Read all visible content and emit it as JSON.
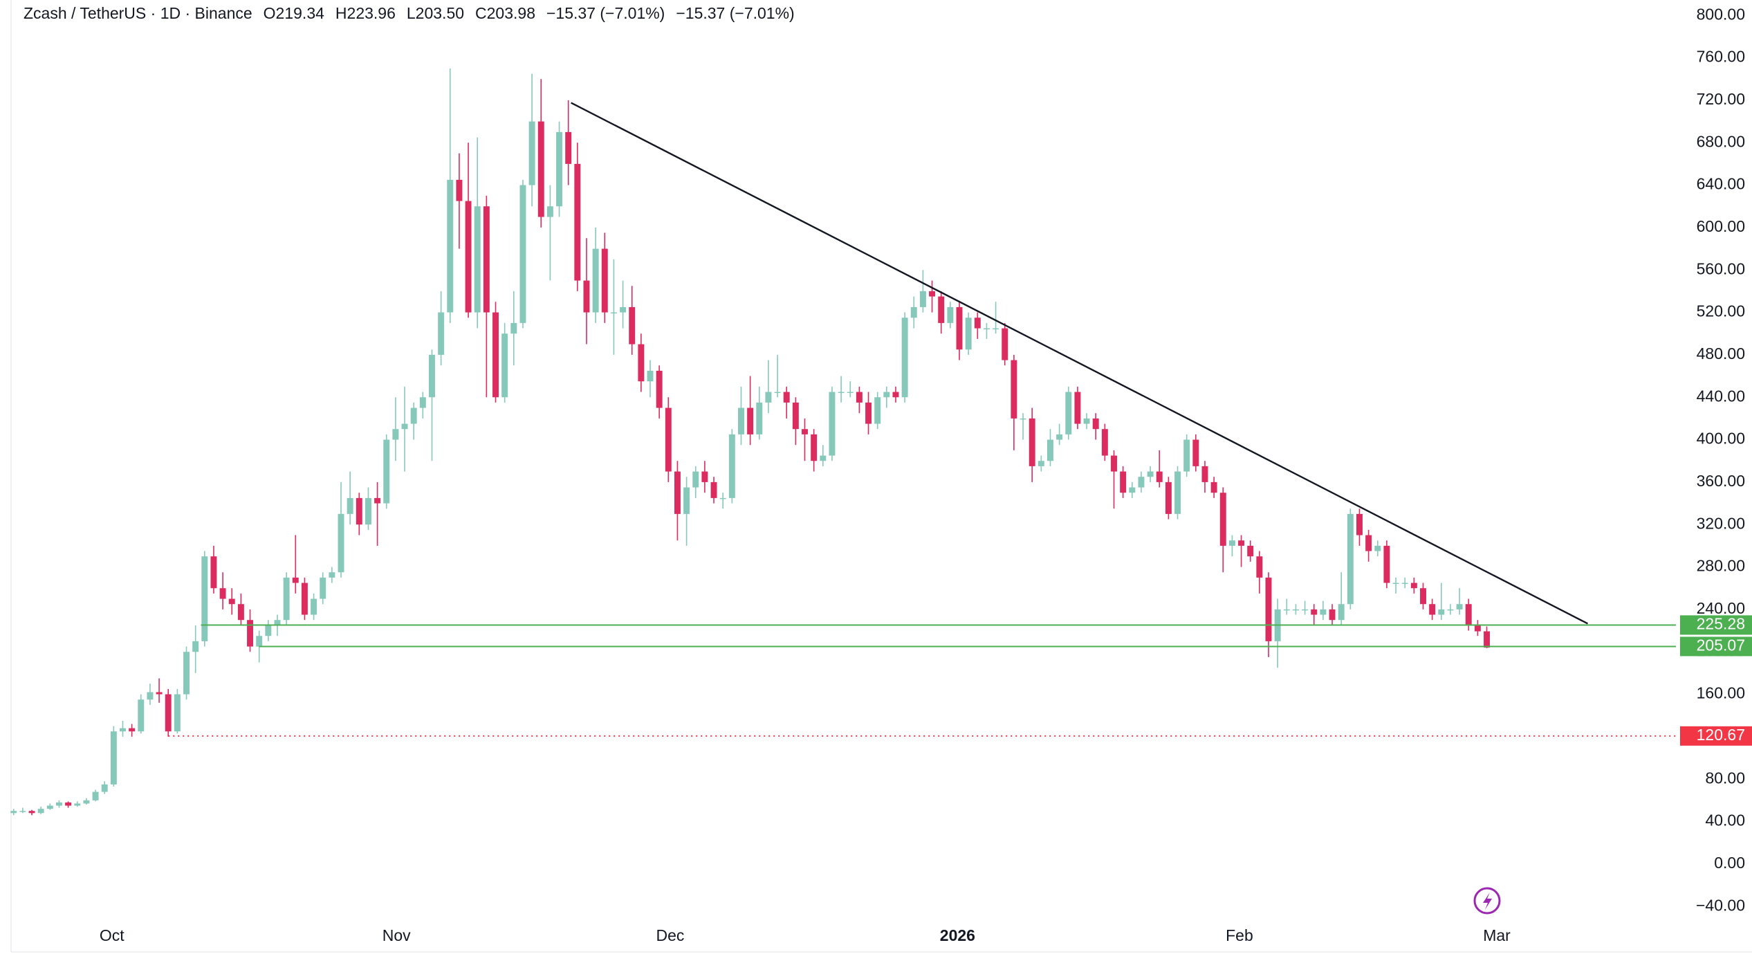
{
  "chart_data": {
    "type": "candlestick",
    "title": "Zcash / TetherUS · 1D · Binance",
    "header_values": [
      "O219.34",
      "H223.96",
      "L203.50",
      "C203.98",
      "−15.37 (−7.01%)",
      "−15.37 (−7.01%)"
    ],
    "up_color": "#86c8ba",
    "down_color": "#dc2b5e",
    "candles": [
      [
        48,
        52,
        46,
        50
      ],
      [
        50,
        53,
        48,
        50
      ],
      [
        50,
        51,
        46,
        48
      ],
      [
        48,
        54,
        47,
        52
      ],
      [
        52,
        57,
        51,
        55
      ],
      [
        55,
        60,
        53,
        58
      ],
      [
        58,
        59,
        53,
        55
      ],
      [
        55,
        59,
        54,
        57
      ],
      [
        57,
        62,
        56,
        60
      ],
      [
        60,
        70,
        59,
        68
      ],
      [
        68,
        78,
        66,
        75
      ],
      [
        75,
        130,
        73,
        125
      ],
      [
        125,
        135,
        120,
        128
      ],
      [
        128,
        132,
        120,
        125
      ],
      [
        125,
        160,
        123,
        155
      ],
      [
        155,
        170,
        150,
        162
      ],
      [
        162,
        175,
        152,
        160
      ],
      [
        160,
        165,
        120,
        125
      ],
      [
        125,
        165,
        123,
        160
      ],
      [
        160,
        205,
        155,
        200
      ],
      [
        200,
        225,
        180,
        210
      ],
      [
        210,
        295,
        205,
        290
      ],
      [
        290,
        300,
        255,
        260
      ],
      [
        260,
        275,
        240,
        250
      ],
      [
        250,
        260,
        235,
        245
      ],
      [
        245,
        255,
        225,
        230
      ],
      [
        230,
        240,
        200,
        205
      ],
      [
        205,
        220,
        190,
        215
      ],
      [
        215,
        230,
        210,
        225
      ],
      [
        225,
        235,
        215,
        230
      ],
      [
        230,
        275,
        225,
        270
      ],
      [
        270,
        310,
        255,
        265
      ],
      [
        265,
        270,
        230,
        235
      ],
      [
        235,
        255,
        230,
        250
      ],
      [
        250,
        275,
        245,
        270
      ],
      [
        270,
        280,
        265,
        275
      ],
      [
        275,
        360,
        270,
        330
      ],
      [
        330,
        370,
        320,
        345
      ],
      [
        345,
        350,
        310,
        320
      ],
      [
        320,
        355,
        315,
        345
      ],
      [
        345,
        360,
        300,
        340
      ],
      [
        340,
        405,
        335,
        400
      ],
      [
        400,
        440,
        380,
        410
      ],
      [
        410,
        450,
        370,
        415
      ],
      [
        415,
        435,
        400,
        430
      ],
      [
        430,
        445,
        420,
        440
      ],
      [
        440,
        485,
        380,
        480
      ],
      [
        480,
        540,
        470,
        520
      ],
      [
        520,
        750,
        510,
        645
      ],
      [
        645,
        670,
        580,
        625
      ],
      [
        625,
        680,
        515,
        520
      ],
      [
        520,
        685,
        505,
        620
      ],
      [
        620,
        630,
        440,
        520
      ],
      [
        520,
        530,
        435,
        440
      ],
      [
        440,
        510,
        435,
        500
      ],
      [
        500,
        540,
        470,
        510
      ],
      [
        510,
        645,
        505,
        640
      ],
      [
        640,
        745,
        620,
        700
      ],
      [
        700,
        740,
        600,
        610
      ],
      [
        610,
        640,
        550,
        620
      ],
      [
        620,
        700,
        610,
        690
      ],
      [
        690,
        720,
        640,
        660
      ],
      [
        660,
        680,
        540,
        550
      ],
      [
        550,
        590,
        490,
        520
      ],
      [
        520,
        600,
        510,
        580
      ],
      [
        580,
        595,
        510,
        520
      ],
      [
        520,
        570,
        480,
        520
      ],
      [
        520,
        550,
        505,
        525
      ],
      [
        525,
        545,
        480,
        490
      ],
      [
        490,
        500,
        445,
        455
      ],
      [
        455,
        475,
        440,
        465
      ],
      [
        465,
        470,
        420,
        430
      ],
      [
        430,
        440,
        360,
        370
      ],
      [
        370,
        380,
        305,
        330
      ],
      [
        330,
        365,
        300,
        355
      ],
      [
        355,
        375,
        345,
        370
      ],
      [
        370,
        380,
        350,
        360
      ],
      [
        360,
        365,
        340,
        345
      ],
      [
        345,
        350,
        335,
        345
      ],
      [
        345,
        410,
        340,
        405
      ],
      [
        405,
        450,
        395,
        430
      ],
      [
        430,
        460,
        395,
        405
      ],
      [
        405,
        450,
        400,
        435
      ],
      [
        435,
        475,
        425,
        445
      ],
      [
        445,
        480,
        440,
        445
      ],
      [
        445,
        450,
        420,
        435
      ],
      [
        435,
        440,
        395,
        410
      ],
      [
        410,
        420,
        380,
        405
      ],
      [
        405,
        410,
        370,
        380
      ],
      [
        380,
        395,
        375,
        385
      ],
      [
        385,
        450,
        380,
        445
      ],
      [
        445,
        460,
        435,
        445
      ],
      [
        445,
        455,
        440,
        445
      ],
      [
        445,
        450,
        425,
        435
      ],
      [
        435,
        445,
        405,
        415
      ],
      [
        415,
        445,
        410,
        440
      ],
      [
        440,
        450,
        430,
        445
      ],
      [
        445,
        450,
        435,
        440
      ],
      [
        440,
        520,
        435,
        515
      ],
      [
        515,
        535,
        505,
        525
      ],
      [
        525,
        560,
        520,
        540
      ],
      [
        540,
        550,
        520,
        535
      ],
      [
        535,
        540,
        500,
        510
      ],
      [
        510,
        530,
        505,
        525
      ],
      [
        525,
        530,
        475,
        485
      ],
      [
        485,
        520,
        480,
        515
      ],
      [
        515,
        520,
        495,
        505
      ],
      [
        505,
        510,
        495,
        505
      ],
      [
        505,
        530,
        500,
        505
      ],
      [
        505,
        510,
        470,
        475
      ],
      [
        475,
        480,
        390,
        420
      ],
      [
        420,
        425,
        400,
        420
      ],
      [
        420,
        430,
        360,
        375
      ],
      [
        375,
        385,
        370,
        380
      ],
      [
        380,
        410,
        375,
        400
      ],
      [
        400,
        415,
        395,
        405
      ],
      [
        405,
        450,
        400,
        445
      ],
      [
        445,
        450,
        410,
        415
      ],
      [
        415,
        425,
        410,
        420
      ],
      [
        420,
        425,
        400,
        410
      ],
      [
        410,
        415,
        380,
        385
      ],
      [
        385,
        390,
        335,
        370
      ],
      [
        370,
        375,
        345,
        350
      ],
      [
        350,
        360,
        345,
        355
      ],
      [
        355,
        370,
        350,
        365
      ],
      [
        365,
        375,
        360,
        370
      ],
      [
        370,
        390,
        355,
        360
      ],
      [
        360,
        365,
        325,
        330
      ],
      [
        330,
        375,
        325,
        370
      ],
      [
        370,
        405,
        365,
        400
      ],
      [
        400,
        405,
        370,
        375
      ],
      [
        375,
        380,
        350,
        360
      ],
      [
        360,
        365,
        345,
        350
      ],
      [
        350,
        355,
        275,
        300
      ],
      [
        300,
        310,
        290,
        305
      ],
      [
        305,
        310,
        280,
        300
      ],
      [
        300,
        305,
        285,
        290
      ],
      [
        290,
        295,
        255,
        270
      ],
      [
        270,
        275,
        195,
        210
      ],
      [
        210,
        250,
        185,
        240
      ],
      [
        240,
        250,
        235,
        240
      ],
      [
        240,
        245,
        235,
        240
      ],
      [
        240,
        248,
        235,
        240
      ],
      [
        240,
        245,
        225,
        235
      ],
      [
        235,
        248,
        230,
        240
      ],
      [
        240,
        245,
        225,
        230
      ],
      [
        230,
        275,
        225,
        245
      ],
      [
        245,
        335,
        240,
        330
      ],
      [
        330,
        335,
        300,
        310
      ],
      [
        310,
        315,
        285,
        295
      ],
      [
        295,
        305,
        290,
        300
      ],
      [
        300,
        305,
        260,
        265
      ],
      [
        265,
        270,
        255,
        265
      ],
      [
        265,
        270,
        260,
        265
      ],
      [
        265,
        270,
        255,
        260
      ],
      [
        260,
        265,
        240,
        245
      ],
      [
        245,
        250,
        230,
        235
      ],
      [
        235,
        265,
        230,
        240
      ],
      [
        240,
        245,
        235,
        240
      ],
      [
        240,
        260,
        235,
        245
      ],
      [
        245,
        250,
        220,
        225
      ],
      [
        225,
        230,
        215,
        219.34
      ],
      [
        219.34,
        223.96,
        203.5,
        203.98
      ]
    ],
    "xlim": [
      -1.5,
      182.8
    ],
    "xticks": [
      {
        "value": 10.8,
        "label": "Oct"
      },
      {
        "value": 42.1,
        "label": "Nov"
      },
      {
        "value": 72.2,
        "label": "Dec"
      },
      {
        "value": 103.8,
        "label": "2026",
        "bold": true
      },
      {
        "value": 134.8,
        "label": "Feb"
      },
      {
        "value": 163.1,
        "label": "Mar"
      }
    ],
    "ylim": [
      -51.6,
      814.5
    ],
    "yticks": [
      {
        "value": 800,
        "label": "800.00"
      },
      {
        "value": 760,
        "label": "760.00"
      },
      {
        "value": 720,
        "label": "720.00"
      },
      {
        "value": 680,
        "label": "680.00"
      },
      {
        "value": 640,
        "label": "640.00"
      },
      {
        "value": 600,
        "label": "600.00"
      },
      {
        "value": 560,
        "label": "560.00"
      },
      {
        "value": 520,
        "label": "520.00"
      },
      {
        "value": 480,
        "label": "480.00"
      },
      {
        "value": 440,
        "label": "440.00"
      },
      {
        "value": 400,
        "label": "400.00"
      },
      {
        "value": 360,
        "label": "360.00"
      },
      {
        "value": 320,
        "label": "320.00"
      },
      {
        "value": 280,
        "label": "280.00"
      },
      {
        "value": 240,
        "label": "240.00"
      },
      {
        "value": 200,
        "label": "200.00"
      },
      {
        "value": 160,
        "label": "160.00"
      },
      {
        "value": 120,
        "label": "120.00"
      },
      {
        "value": 80,
        "label": "80.00"
      },
      {
        "value": 40,
        "label": "40.00"
      },
      {
        "value": 0,
        "label": "0.00"
      },
      {
        "value": -40,
        "label": "−40.00"
      }
    ],
    "levels": [
      {
        "value": 225.28,
        "label": "225.28",
        "color": "#4caf50",
        "start": 20.6,
        "dashed": false
      },
      {
        "value": 205.07,
        "label": "205.07",
        "color": "#4caf50",
        "start": 27,
        "dashed": false
      },
      {
        "value": 120.67,
        "label": "120.67",
        "color": "#f23645",
        "start": 17,
        "dashed": true
      }
    ],
    "trendline": {
      "start": [
        61.3,
        717.6
      ],
      "end": [
        173.1,
        226.6
      ],
      "color": "#131722"
    }
  }
}
